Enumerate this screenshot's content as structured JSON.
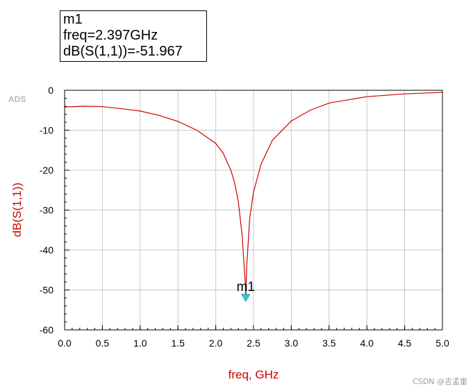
{
  "marker_box": {
    "name": "m1",
    "freq_line": "freq=2.397GHz",
    "value_line": "dB(S(1,1))=-51.967"
  },
  "ads_label": "ADS",
  "watermark": "CSDN @吉孟雷",
  "chart_data": {
    "type": "line",
    "title": "",
    "xlabel": "freq, GHz",
    "ylabel": "dB(S(1,1))",
    "xlim": [
      0.0,
      5.0
    ],
    "ylim": [
      -60,
      0
    ],
    "x_ticks": [
      "0.0",
      "0.5",
      "1.0",
      "1.5",
      "2.0",
      "2.5",
      "3.0",
      "3.5",
      "4.0",
      "4.5",
      "5.0"
    ],
    "y_ticks": [
      "0",
      "-10",
      "-20",
      "-30",
      "-40",
      "-50",
      "-60"
    ],
    "grid": true,
    "colors": {
      "trace": "#cc0000",
      "axis_label": "#cc0000",
      "marker": "#33ccdd",
      "grid": "#c8c8c8"
    },
    "series": [
      {
        "x": [
          0.0,
          0.25,
          0.5,
          0.75,
          1.0,
          1.25,
          1.5,
          1.75,
          2.0,
          2.1,
          2.2,
          2.25,
          2.3,
          2.35,
          2.39,
          2.397,
          2.41,
          2.45,
          2.5,
          2.6,
          2.75,
          3.0,
          3.25,
          3.5,
          4.0,
          4.5,
          5.0
        ],
        "y": [
          -4.2,
          -4.0,
          -4.1,
          -4.6,
          -5.2,
          -6.3,
          -7.8,
          -10.0,
          -13.3,
          -15.8,
          -20.0,
          -23.2,
          -28.0,
          -36.5,
          -48.0,
          -51.967,
          -44.0,
          -32.0,
          -25.5,
          -18.5,
          -12.5,
          -7.7,
          -5.0,
          -3.2,
          -1.6,
          -0.9,
          -0.5
        ]
      }
    ],
    "markers": [
      {
        "label": "m1",
        "x": 2.397,
        "y": -51.967
      }
    ]
  }
}
